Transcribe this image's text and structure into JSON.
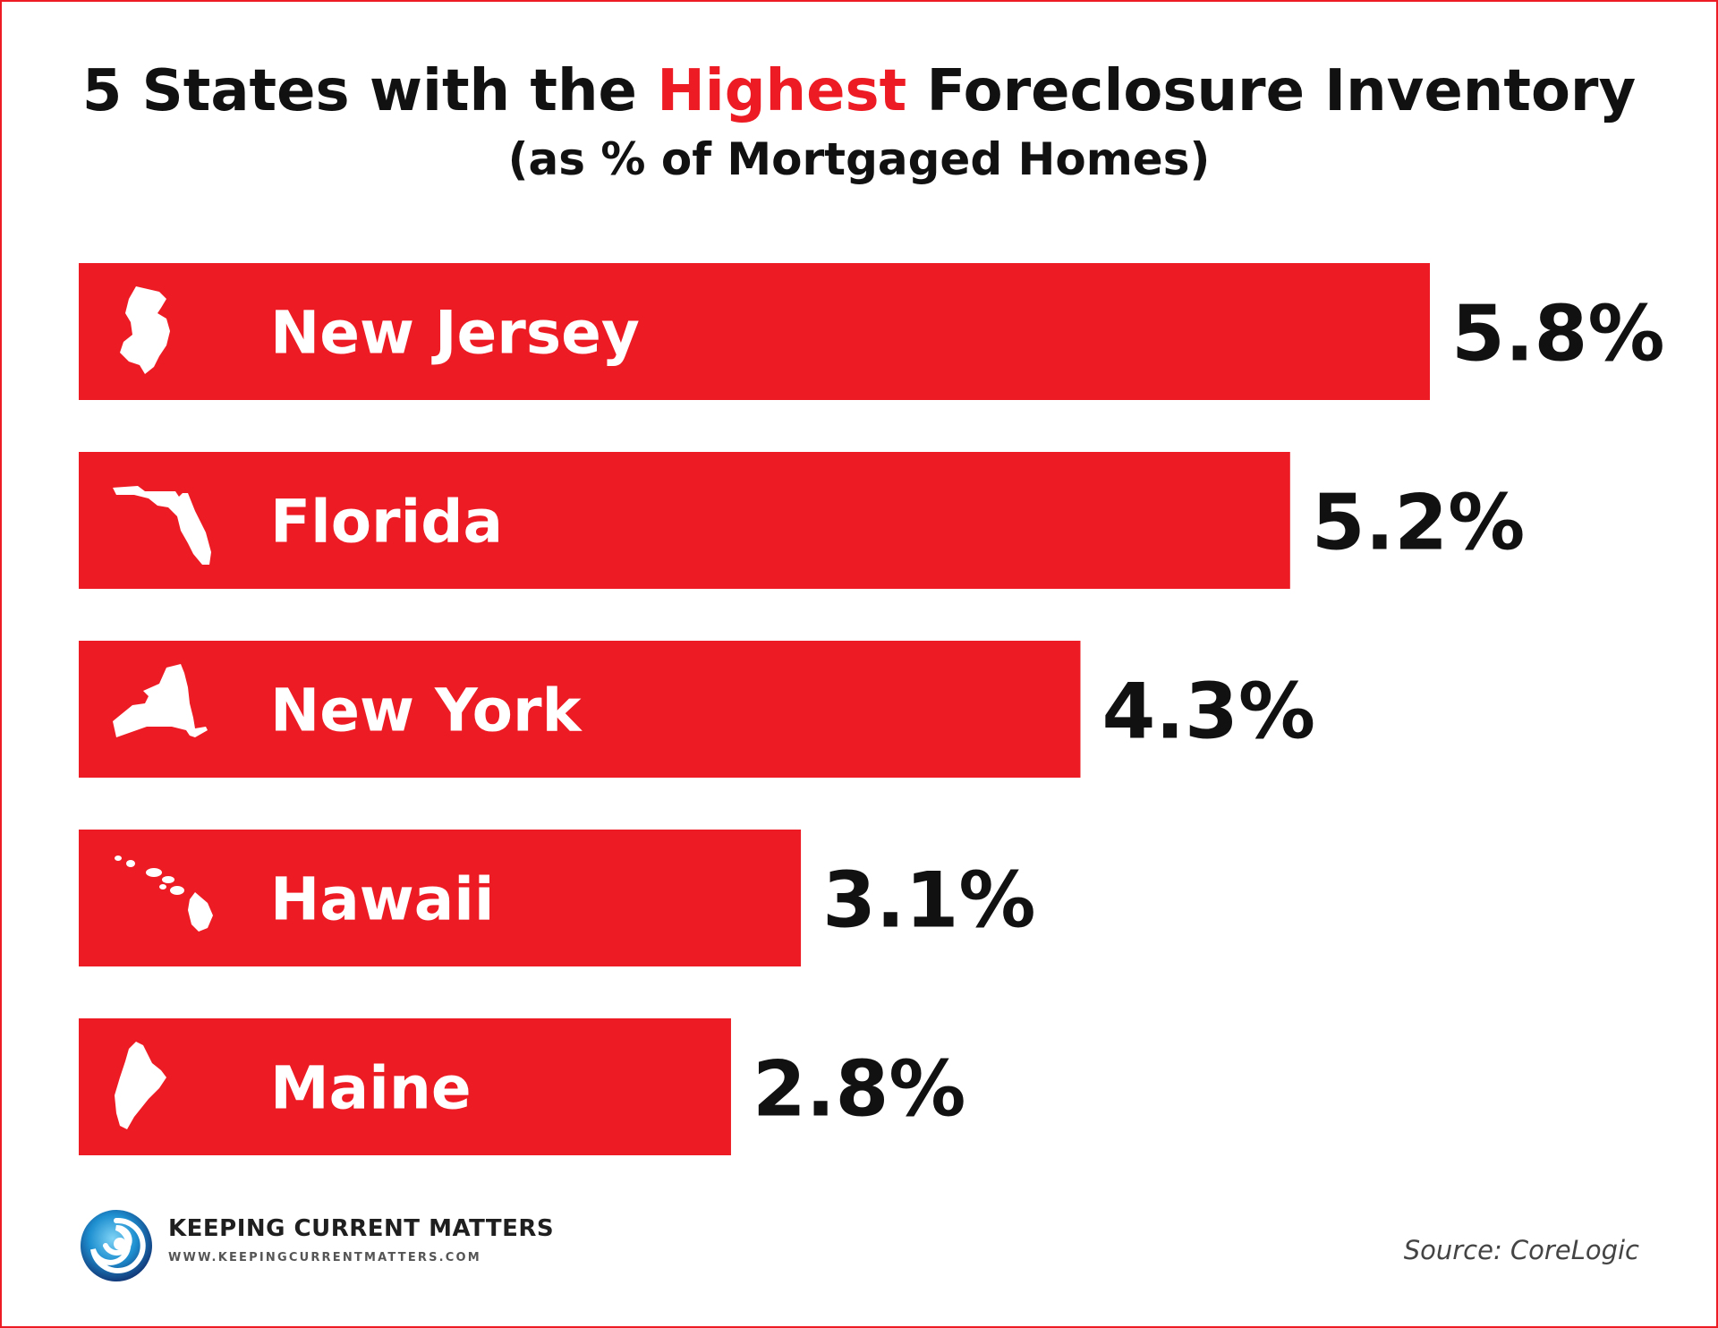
{
  "title": {
    "prefix": "5 States with the ",
    "highlight": "Highest",
    "suffix": " Foreclosure Inventory"
  },
  "subtitle": "(as % of Mortgaged Homes)",
  "colors": {
    "bar": "#ed1c24",
    "highlight": "#ed1c24",
    "text": "#111111"
  },
  "chart_data": {
    "type": "bar",
    "orientation": "horizontal",
    "categories": [
      "New Jersey",
      "Florida",
      "New York",
      "Hawaii",
      "Maine"
    ],
    "values": [
      5.8,
      5.2,
      4.3,
      3.1,
      2.8
    ],
    "value_labels": [
      "5.8%",
      "5.2%",
      "4.3%",
      "3.1%",
      "2.8%"
    ],
    "icons": [
      "new-jersey-shape-icon",
      "florida-shape-icon",
      "new-york-shape-icon",
      "hawaii-shape-icon",
      "maine-shape-icon"
    ],
    "title": "5 States with the Highest Foreclosure Inventory",
    "subtitle": "(as % of Mortgaged Homes)",
    "xlabel": "",
    "ylabel": "",
    "xlim": [
      0,
      5.8
    ],
    "grid": false,
    "legend": "none"
  },
  "footer": {
    "logo_name": "KEEPING CURRENT MATTERS",
    "logo_url": "WWW.KEEPINGCURRENTMATTERS.COM",
    "source": "Source: CoreLogic"
  }
}
